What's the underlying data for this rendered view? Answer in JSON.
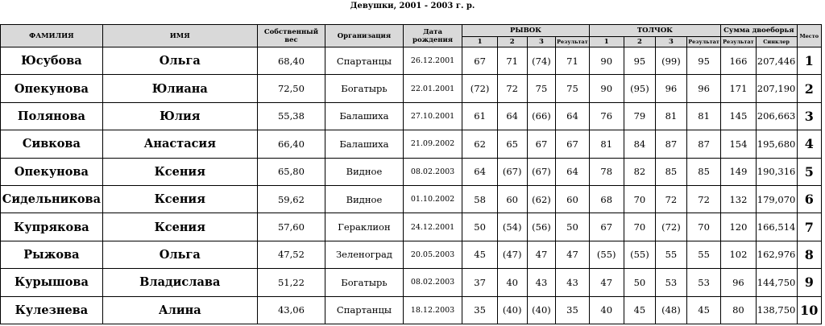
{
  "title": "Девушки, 2001 - 2003 г. р.",
  "headers": {
    "surname": "ФАМИЛИЯ",
    "name": "ИМЯ",
    "weight": "Собственный вес",
    "org": "Организация",
    "dob": "Дата рождения",
    "snatch": "РЫВОК",
    "cj": "ТОЛЧОК",
    "total": "Сумма двоеборья",
    "place": "Место",
    "attempt1": "1",
    "attempt2": "2",
    "attempt3": "3",
    "result": "Результат",
    "total_result": "Результат",
    "sinclair": "Синклер"
  },
  "rows": [
    {
      "surname": "Юсубова",
      "name": "Ольга",
      "weight": "68,40",
      "org": "Спартанцы",
      "dob": "26.12.2001",
      "s1": "67",
      "s2": "71",
      "s3": "(74)",
      "sr": "71",
      "c1": "90",
      "c2": "95",
      "c3": "(99)",
      "cr": "95",
      "total": "166",
      "sinclair": "207,446",
      "place": "1"
    },
    {
      "surname": "Опекунова",
      "name": "Юлиана",
      "weight": "72,50",
      "org": "Богатырь",
      "dob": "22.01.2001",
      "s1": "(72)",
      "s2": "72",
      "s3": "75",
      "sr": "75",
      "c1": "90",
      "c2": "(95)",
      "c3": "96",
      "cr": "96",
      "total": "171",
      "sinclair": "207,190",
      "place": "2"
    },
    {
      "surname": "Полянова",
      "name": "Юлия",
      "weight": "55,38",
      "org": "Балашиха",
      "dob": "27.10.2001",
      "s1": "61",
      "s2": "64",
      "s3": "(66)",
      "sr": "64",
      "c1": "76",
      "c2": "79",
      "c3": "81",
      "cr": "81",
      "total": "145",
      "sinclair": "206,663",
      "place": "3"
    },
    {
      "surname": "Сивкова",
      "name": "Анастасия",
      "weight": "66,40",
      "org": "Балашиха",
      "dob": "21.09.2002",
      "s1": "62",
      "s2": "65",
      "s3": "67",
      "sr": "67",
      "c1": "81",
      "c2": "84",
      "c3": "87",
      "cr": "87",
      "total": "154",
      "sinclair": "195,680",
      "place": "4"
    },
    {
      "surname": "Опекунова",
      "name": "Ксения",
      "weight": "65,80",
      "org": "Видное",
      "dob": "08.02.2003",
      "s1": "64",
      "s2": "(67)",
      "s3": "(67)",
      "sr": "64",
      "c1": "78",
      "c2": "82",
      "c3": "85",
      "cr": "85",
      "total": "149",
      "sinclair": "190,316",
      "place": "5"
    },
    {
      "surname": "Сидельникова",
      "name": "Ксения",
      "weight": "59,62",
      "org": "Видное",
      "dob": "01.10.2002",
      "s1": "58",
      "s2": "60",
      "s3": "(62)",
      "sr": "60",
      "c1": "68",
      "c2": "70",
      "c3": "72",
      "cr": "72",
      "total": "132",
      "sinclair": "179,070",
      "place": "6"
    },
    {
      "surname": "Купрякова",
      "name": "Ксения",
      "weight": "57,60",
      "org": "Гераклион",
      "dob": "24.12.2001",
      "s1": "50",
      "s2": "(54)",
      "s3": "(56)",
      "sr": "50",
      "c1": "67",
      "c2": "70",
      "c3": "(72)",
      "cr": "70",
      "total": "120",
      "sinclair": "166,514",
      "place": "7"
    },
    {
      "surname": "Рыжова",
      "name": "Ольга",
      "weight": "47,52",
      "org": "Зеленоград",
      "dob": "20.05.2003",
      "s1": "45",
      "s2": "(47)",
      "s3": "47",
      "sr": "47",
      "c1": "(55)",
      "c2": "(55)",
      "c3": "55",
      "cr": "55",
      "total": "102",
      "sinclair": "162,976",
      "place": "8"
    },
    {
      "surname": "Курышова",
      "name": "Владислава",
      "weight": "51,22",
      "org": "Богатырь",
      "dob": "08.02.2003",
      "s1": "37",
      "s2": "40",
      "s3": "43",
      "sr": "43",
      "c1": "47",
      "c2": "50",
      "c3": "53",
      "cr": "53",
      "total": "96",
      "sinclair": "144,750",
      "place": "9"
    },
    {
      "surname": "Кулезнева",
      "name": "Алина",
      "weight": "43,06",
      "org": "Спартанцы",
      "dob": "18.12.2003",
      "s1": "35",
      "s2": "(40)",
      "s3": "(40)",
      "sr": "35",
      "c1": "40",
      "c2": "45",
      "c3": "(48)",
      "cr": "45",
      "total": "80",
      "sinclair": "138,750",
      "place": "10"
    }
  ]
}
